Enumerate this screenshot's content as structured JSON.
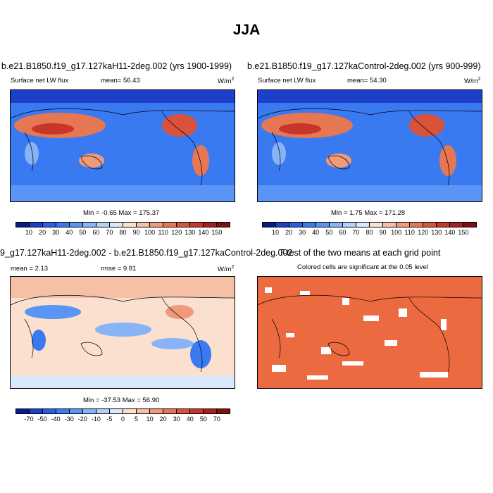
{
  "season": "JJA",
  "panels": [
    {
      "title": "b.e21.B1850.f19_g17.127kaH11-2deg.002 (yrs 1900-1999)",
      "variable": "Surface net LW flux",
      "stat": "mean=  56.43",
      "units": "W/m",
      "units_exp": "2",
      "minmax": "Min =  -0.65 Max = 175.37"
    },
    {
      "title": "b.e21.B1850.f19_g17.127kaControl-2deg.002 (yrs 900-999)",
      "variable": "Surface net LW flux",
      "stat": "mean=  54.30",
      "units": "W/m",
      "units_exp": "2",
      "minmax": "Min =   1.75 Max = 171.28"
    },
    {
      "title": "9_g17.127kaH11-2deg.002 - b.e21.B1850.f19_g17.127kaControl-2deg.002",
      "mean": "mean =   2.13",
      "rmse": "rmse =   9.81",
      "units": "W/m",
      "units_exp": "2",
      "minmax": "Min = -37.53 Max =  56.90"
    },
    {
      "title": "T-test of the two means at each grid point",
      "subtitle": "Colored cells are significant at the 0.05 level"
    }
  ],
  "colorbar_abs": {
    "labels": [
      "10",
      "20",
      "30",
      "40",
      "50",
      "60",
      "70",
      "80",
      "90",
      "100",
      "110",
      "120",
      "130",
      "140",
      "150"
    ],
    "colors": [
      "#0a1a8c",
      "#1e3fc8",
      "#2b5ee6",
      "#3a7af0",
      "#5a95f5",
      "#86b4f7",
      "#b3d0fa",
      "#dbe8fc",
      "#fbe0d0",
      "#f5c1a6",
      "#ef9a78",
      "#e77653",
      "#d9523a",
      "#c8352a",
      "#a8201e",
      "#7d0f10"
    ]
  },
  "colorbar_diff": {
    "labels": [
      "-70",
      "-50",
      "-40",
      "-30",
      "-20",
      "-10",
      "-5",
      "0",
      "5",
      "10",
      "20",
      "30",
      "40",
      "50",
      "70"
    ],
    "colors": [
      "#0a1a8c",
      "#1e3fc8",
      "#2b5ee6",
      "#3a7af0",
      "#5a95f5",
      "#86b4f7",
      "#b3d0fa",
      "#dbe8fc",
      "#fbe0d0",
      "#f5c1a6",
      "#ef9a78",
      "#e77653",
      "#d9523a",
      "#c8352a",
      "#a8201e",
      "#7d0f10"
    ]
  },
  "chart_data": [
    {
      "type": "heatmap",
      "title": "b.e21.B1850.f19_g17.127kaH11-2deg.002 (yrs 1900-1999)",
      "variable": "Surface net LW flux",
      "units": "W/m2",
      "mean": 56.43,
      "min": -0.65,
      "max": 175.37,
      "color_levels": [
        10,
        20,
        30,
        40,
        50,
        60,
        70,
        80,
        90,
        100,
        110,
        120,
        130,
        140,
        150
      ]
    },
    {
      "type": "heatmap",
      "title": "b.e21.B1850.f19_g17.127kaControl-2deg.002 (yrs 900-999)",
      "variable": "Surface net LW flux",
      "units": "W/m2",
      "mean": 54.3,
      "min": 1.75,
      "max": 171.28,
      "color_levels": [
        10,
        20,
        30,
        40,
        50,
        60,
        70,
        80,
        90,
        100,
        110,
        120,
        130,
        140,
        150
      ]
    },
    {
      "type": "heatmap",
      "title": "9_g17.127kaH11-2deg.002 - b.e21.B1850.f19_g17.127kaControl-2deg.002",
      "units": "W/m2",
      "mean": 2.13,
      "rmse": 9.81,
      "min": -37.53,
      "max": 56.9,
      "color_levels": [
        -70,
        -50,
        -40,
        -30,
        -20,
        -10,
        -5,
        0,
        5,
        10,
        20,
        30,
        40,
        50,
        70
      ]
    },
    {
      "type": "heatmap",
      "title": "T-test of the two means at each grid point",
      "subtitle": "Colored cells are significant at the 0.05 level"
    }
  ]
}
